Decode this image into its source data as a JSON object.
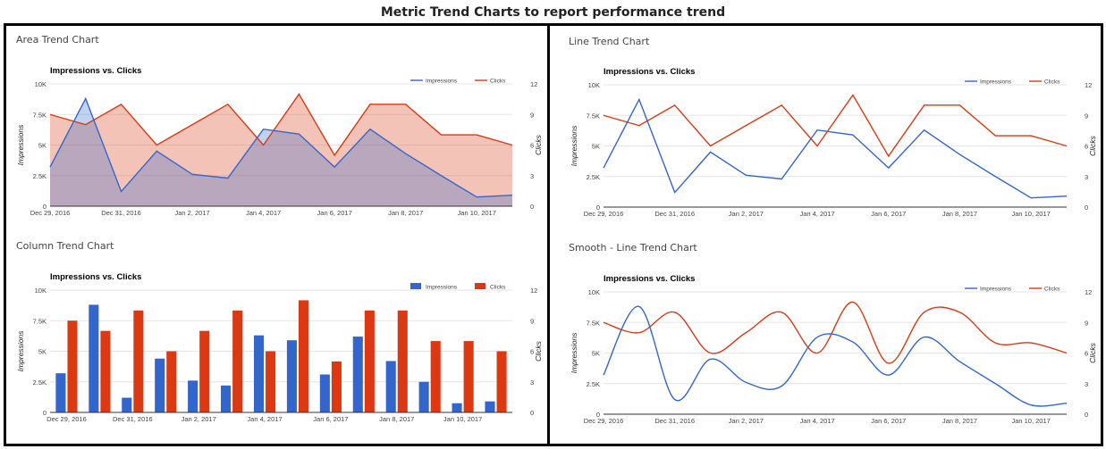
{
  "page": {
    "title": "Metric Trend Charts to report performance trend"
  },
  "colors": {
    "impressions": "#3366cc",
    "clicks": "#dc3912",
    "grid": "#e6e6e6",
    "border": "#000000"
  },
  "chart_data": [
    {
      "panel_title": "Area Trend Chart",
      "type": "area",
      "title": "Impressions vs. Clicks",
      "x": [
        "Dec 29, 2016",
        "Dec 30, 2016",
        "Dec 31, 2016",
        "Jan 1, 2017",
        "Jan 2, 2017",
        "Jan 3, 2017",
        "Jan 4, 2017",
        "Jan 5, 2017",
        "Jan 6, 2017",
        "Jan 7, 2017",
        "Jan 8, 2017",
        "Jan 9, 2017",
        "Jan 10, 2017",
        "Jan 11, 2017"
      ],
      "x_tick_labels": [
        "Dec 29, 2016",
        "Dec 31, 2016",
        "Jan 2, 2017",
        "Jan 4, 2017",
        "Jan 6, 2017",
        "Jan 8, 2017",
        "Jan 10, 2017"
      ],
      "series": [
        {
          "name": "Impressions",
          "axis": "left",
          "values": [
            3200,
            8800,
            1200,
            4500,
            2600,
            2300,
            6300,
            5900,
            3200,
            6300,
            4300,
            2500,
            750,
            900
          ]
        },
        {
          "name": "Clicks",
          "axis": "right",
          "values": [
            9,
            8,
            10,
            6,
            8,
            10,
            6,
            11,
            5,
            10,
            10,
            7,
            7,
            6
          ]
        }
      ],
      "xlabel": "",
      "ylabel": "Impressions",
      "y2label": "Clicks",
      "ylim": [
        0,
        10000
      ],
      "y2lim": [
        0,
        12
      ],
      "y_ticks": [
        "0",
        "2.5K",
        "5K",
        "7.5K",
        "10K"
      ],
      "y2_ticks": [
        "0",
        "3",
        "6",
        "9",
        "12"
      ],
      "grid": true,
      "legend": "top-right"
    },
    {
      "panel_title": "Line Trend Chart",
      "type": "line",
      "title": "Impressions vs. Clicks",
      "x": [
        "Dec 29, 2016",
        "Dec 30, 2016",
        "Dec 31, 2016",
        "Jan 1, 2017",
        "Jan 2, 2017",
        "Jan 3, 2017",
        "Jan 4, 2017",
        "Jan 5, 2017",
        "Jan 6, 2017",
        "Jan 7, 2017",
        "Jan 8, 2017",
        "Jan 9, 2017",
        "Jan 10, 2017",
        "Jan 11, 2017"
      ],
      "x_tick_labels": [
        "Dec 29, 2016",
        "Dec 31, 2016",
        "Jan 2, 2017",
        "Jan 4, 2017",
        "Jan 6, 2017",
        "Jan 8, 2017",
        "Jan 10, 2017"
      ],
      "series": [
        {
          "name": "Impressions",
          "axis": "left",
          "values": [
            3200,
            8800,
            1200,
            4500,
            2600,
            2300,
            6300,
            5900,
            3200,
            6300,
            4300,
            2500,
            750,
            900
          ]
        },
        {
          "name": "Clicks",
          "axis": "right",
          "values": [
            9,
            8,
            10,
            6,
            8,
            10,
            6,
            11,
            5,
            10,
            10,
            7,
            7,
            6
          ]
        }
      ],
      "xlabel": "",
      "ylabel": "Impressions",
      "y2label": "Clicks",
      "ylim": [
        0,
        10000
      ],
      "y2lim": [
        0,
        12
      ],
      "y_ticks": [
        "0",
        "2.5K",
        "5K",
        "7.5K",
        "10K"
      ],
      "y2_ticks": [
        "0",
        "3",
        "6",
        "9",
        "12"
      ],
      "grid": true,
      "legend": "top-right"
    },
    {
      "panel_title": "Column Trend Chart",
      "type": "bar",
      "title": "Impressions vs. Clicks",
      "x": [
        "Dec 29, 2016",
        "Dec 30, 2016",
        "Dec 31, 2016",
        "Jan 1, 2017",
        "Jan 2, 2017",
        "Jan 3, 2017",
        "Jan 4, 2017",
        "Jan 5, 2017",
        "Jan 6, 2017",
        "Jan 7, 2017",
        "Jan 8, 2017",
        "Jan 9, 2017",
        "Jan 10, 2017",
        "Jan 11, 2017"
      ],
      "x_tick_labels": [
        "Dec 29, 2016",
        "Dec 31, 2016",
        "Jan 2, 2017",
        "Jan 4, 2017",
        "Jan 6, 2017",
        "Jan 8, 2017",
        "Jan 10, 2017"
      ],
      "series": [
        {
          "name": "Impressions",
          "axis": "left",
          "values": [
            3200,
            8800,
            1200,
            4400,
            2600,
            2200,
            6300,
            5900,
            3100,
            6200,
            4200,
            2500,
            750,
            900
          ]
        },
        {
          "name": "Clicks",
          "axis": "right",
          "values": [
            9,
            8,
            10,
            6,
            8,
            10,
            6,
            11,
            5,
            10,
            10,
            7,
            7,
            6
          ]
        }
      ],
      "xlabel": "",
      "ylabel": "Impressions",
      "y2label": "Clicks",
      "ylim": [
        0,
        10000
      ],
      "y2lim": [
        0,
        12
      ],
      "y_ticks": [
        "0",
        "2.5K",
        "5K",
        "7.5K",
        "10K"
      ],
      "y2_ticks": [
        "0",
        "3",
        "6",
        "9",
        "12"
      ],
      "grid": true,
      "legend": "top-right"
    },
    {
      "panel_title": "Smooth - Line Trend Chart",
      "type": "line",
      "smooth": true,
      "title": "Impressions vs. Clicks",
      "x": [
        "Dec 29, 2016",
        "Dec 30, 2016",
        "Dec 31, 2016",
        "Jan 1, 2017",
        "Jan 2, 2017",
        "Jan 3, 2017",
        "Jan 4, 2017",
        "Jan 5, 2017",
        "Jan 6, 2017",
        "Jan 7, 2017",
        "Jan 8, 2017",
        "Jan 9, 2017",
        "Jan 10, 2017",
        "Jan 11, 2017"
      ],
      "x_tick_labels": [
        "Dec 29, 2016",
        "Dec 31, 2016",
        "Jan 2, 2017",
        "Jan 4, 2017",
        "Jan 6, 2017",
        "Jan 8, 2017",
        "Jan 10, 2017"
      ],
      "series": [
        {
          "name": "Impressions",
          "axis": "left",
          "values": [
            3200,
            8800,
            1200,
            4500,
            2600,
            2300,
            6300,
            5900,
            3200,
            6300,
            4300,
            2500,
            750,
            900
          ]
        },
        {
          "name": "Clicks",
          "axis": "right",
          "values": [
            9,
            8,
            10,
            6,
            8,
            10,
            6,
            11,
            5,
            10,
            10,
            7,
            7,
            6
          ]
        }
      ],
      "xlabel": "",
      "ylabel": "Impressions",
      "y2label": "Clicks",
      "ylim": [
        0,
        10000
      ],
      "y2lim": [
        0,
        12
      ],
      "y_ticks": [
        "0",
        "2.5K",
        "5K",
        "7.5K",
        "10K"
      ],
      "y2_ticks": [
        "0",
        "3",
        "6",
        "9",
        "12"
      ],
      "grid": true,
      "legend": "top-right"
    }
  ]
}
